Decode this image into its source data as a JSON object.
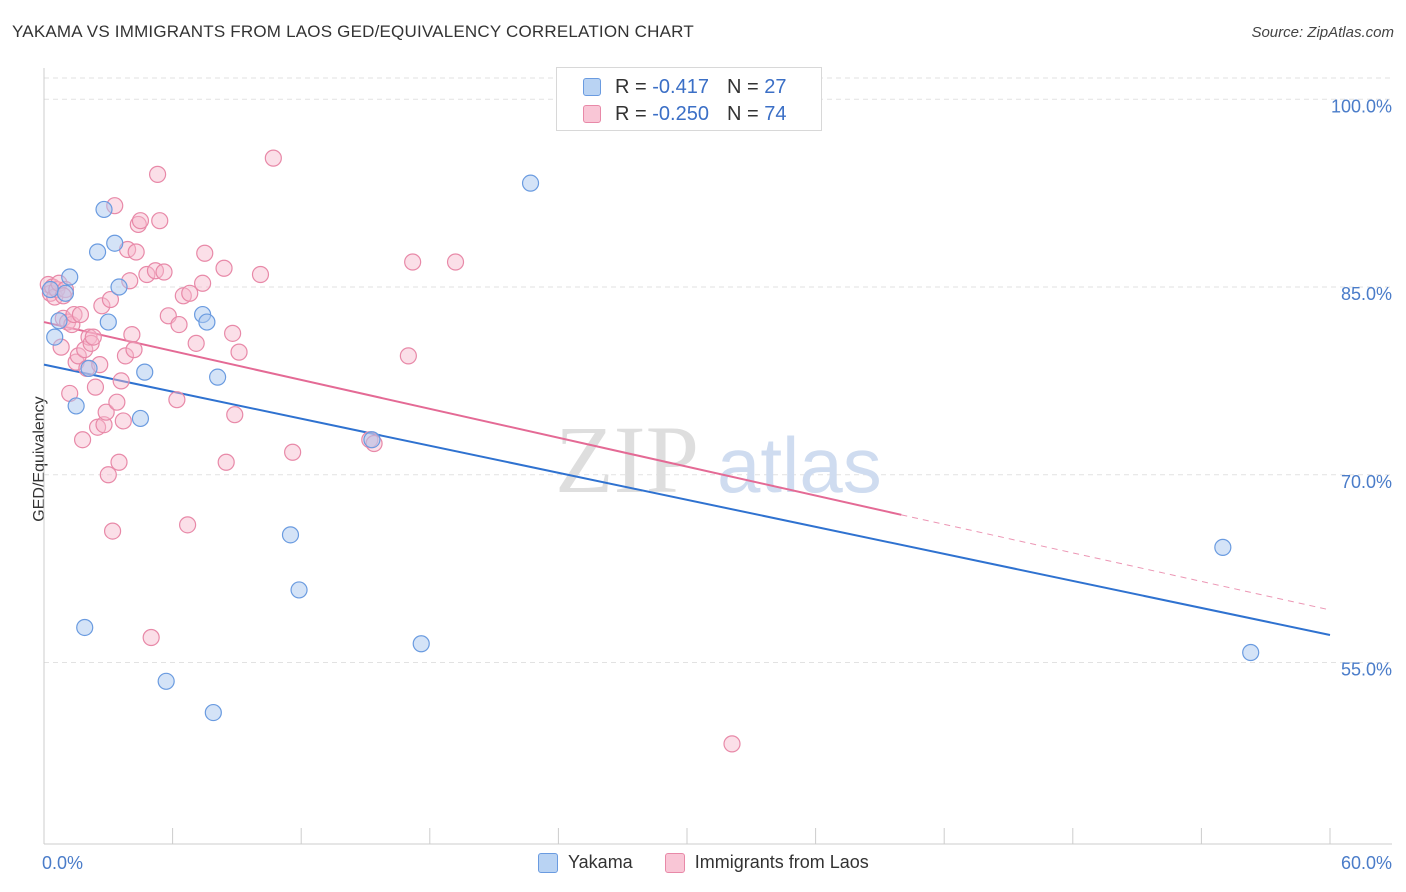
{
  "title": "YAKAMA VS IMMIGRANTS FROM LAOS GED/EQUIVALENCY CORRELATION CHART",
  "source": "Source: ZipAtlas.com",
  "watermark": {
    "zip": "ZIP",
    "atlas": "atlas"
  },
  "legend": {
    "series1": {
      "r_label": "R = ",
      "r_value": "-0.417",
      "n_label": "N = ",
      "n_value": "27"
    },
    "series2": {
      "r_label": "R = ",
      "r_value": "-0.250",
      "n_label": "N = ",
      "n_value": "74"
    }
  },
  "colors": {
    "yakama_fill": "#a9c8f0",
    "yakama_stroke": "#6a9be0",
    "yakama_line": "#2f72d0",
    "laos_fill": "#f7b8cc",
    "laos_stroke": "#e889a8",
    "laos_line": "#e46a95",
    "tick_text": "#4a7cc9",
    "grid": "#e2e2e2"
  },
  "chart_data": {
    "type": "scatter",
    "title": "YAKAMA VS IMMIGRANTS FROM LAOS GED/EQUIVALENCY CORRELATION CHART",
    "xlabel": "",
    "ylabel": "GED/Equivalency",
    "xlim": [
      0,
      60
    ],
    "ylim": [
      40.5,
      102.5
    ],
    "x_tick_labels": [
      "0.0%",
      "60.0%"
    ],
    "y_ticks": [
      100,
      85,
      70,
      55
    ],
    "y_tick_labels": [
      "100.0%",
      "85.0%",
      "70.0%",
      "55.0%"
    ],
    "legend_position": "bottom-center",
    "series": [
      {
        "name": "Yakama",
        "points": [
          [
            0.3,
            84.8
          ],
          [
            0.5,
            81.0
          ],
          [
            0.7,
            82.3
          ],
          [
            1.0,
            84.5
          ],
          [
            1.2,
            85.8
          ],
          [
            1.5,
            75.5
          ],
          [
            1.9,
            57.8
          ],
          [
            2.1,
            78.5
          ],
          [
            2.5,
            87.8
          ],
          [
            2.8,
            91.2
          ],
          [
            3.0,
            82.2
          ],
          [
            3.3,
            88.5
          ],
          [
            3.5,
            85.0
          ],
          [
            4.5,
            74.5
          ],
          [
            4.7,
            78.2
          ],
          [
            5.7,
            53.5
          ],
          [
            7.4,
            82.8
          ],
          [
            7.6,
            82.2
          ],
          [
            7.9,
            51.0
          ],
          [
            8.1,
            77.8
          ],
          [
            11.5,
            65.2
          ],
          [
            11.9,
            60.8
          ],
          [
            15.3,
            72.8
          ],
          [
            17.6,
            56.5
          ],
          [
            22.7,
            93.3
          ],
          [
            55.0,
            64.2
          ],
          [
            56.3,
            55.8
          ]
        ],
        "trend": {
          "x1": 0,
          "y1": 78.8,
          "x2": 60,
          "y2": 57.2
        }
      },
      {
        "name": "Immigrants from Laos",
        "points": [
          [
            0.2,
            85.2
          ],
          [
            0.3,
            84.5
          ],
          [
            0.4,
            85.0
          ],
          [
            0.5,
            84.2
          ],
          [
            0.6,
            84.8
          ],
          [
            0.7,
            85.3
          ],
          [
            0.8,
            80.2
          ],
          [
            0.9,
            82.5
          ],
          [
            1.0,
            84.8
          ],
          [
            1.1,
            82.2
          ],
          [
            1.2,
            76.5
          ],
          [
            1.3,
            82.0
          ],
          [
            1.4,
            82.8
          ],
          [
            1.5,
            79.0
          ],
          [
            1.6,
            79.5
          ],
          [
            1.7,
            82.8
          ],
          [
            1.8,
            72.8
          ],
          [
            1.9,
            80.0
          ],
          [
            2.0,
            78.5
          ],
          [
            2.1,
            81.0
          ],
          [
            2.2,
            80.5
          ],
          [
            2.3,
            81.0
          ],
          [
            2.4,
            77.0
          ],
          [
            2.5,
            73.8
          ],
          [
            2.6,
            78.8
          ],
          [
            2.7,
            83.5
          ],
          [
            2.8,
            74.0
          ],
          [
            2.9,
            75.0
          ],
          [
            3.0,
            70.0
          ],
          [
            3.1,
            84.0
          ],
          [
            3.2,
            65.5
          ],
          [
            3.3,
            91.5
          ],
          [
            3.4,
            75.8
          ],
          [
            3.5,
            71.0
          ],
          [
            3.6,
            77.5
          ],
          [
            3.7,
            74.3
          ],
          [
            3.8,
            79.5
          ],
          [
            3.9,
            88.0
          ],
          [
            4.0,
            85.5
          ],
          [
            4.1,
            81.2
          ],
          [
            4.2,
            80.0
          ],
          [
            4.3,
            87.8
          ],
          [
            4.4,
            90.0
          ],
          [
            4.5,
            90.3
          ],
          [
            4.8,
            86.0
          ],
          [
            5.0,
            57.0
          ],
          [
            5.2,
            86.3
          ],
          [
            5.3,
            94.0
          ],
          [
            5.4,
            90.3
          ],
          [
            5.6,
            86.2
          ],
          [
            5.8,
            82.7
          ],
          [
            6.2,
            76.0
          ],
          [
            6.3,
            82.0
          ],
          [
            6.5,
            84.3
          ],
          [
            6.8,
            84.5
          ],
          [
            7.1,
            80.5
          ],
          [
            7.4,
            85.3
          ],
          [
            7.5,
            87.7
          ],
          [
            6.7,
            66.0
          ],
          [
            8.4,
            86.5
          ],
          [
            8.5,
            71.0
          ],
          [
            8.8,
            81.3
          ],
          [
            8.9,
            74.8
          ],
          [
            9.1,
            79.8
          ],
          [
            10.1,
            86.0
          ],
          [
            10.7,
            95.3
          ],
          [
            11.6,
            71.8
          ],
          [
            15.2,
            72.8
          ],
          [
            15.4,
            72.5
          ],
          [
            17.0,
            79.5
          ],
          [
            17.2,
            87.0
          ],
          [
            19.2,
            87.0
          ],
          [
            32.1,
            48.5
          ],
          [
            0.9,
            84.3
          ]
        ],
        "trend": {
          "x1": 0,
          "y1": 82.2,
          "x2": 40,
          "y2": 66.8
        },
        "trend_extension": {
          "x1": 40,
          "y1": 66.8,
          "x2": 60,
          "y2": 59.2
        }
      }
    ]
  }
}
